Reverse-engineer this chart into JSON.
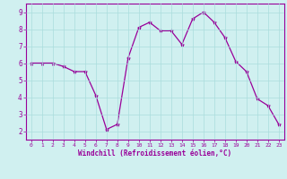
{
  "x": [
    0,
    1,
    2,
    3,
    4,
    5,
    6,
    7,
    8,
    9,
    10,
    11,
    12,
    13,
    14,
    15,
    16,
    17,
    18,
    19,
    20,
    21,
    22,
    23
  ],
  "y": [
    6.0,
    6.0,
    6.0,
    5.8,
    5.5,
    5.5,
    4.1,
    2.1,
    2.4,
    6.3,
    8.1,
    8.4,
    7.9,
    7.9,
    7.1,
    8.6,
    9.0,
    8.4,
    7.5,
    6.1,
    5.5,
    3.9,
    3.5,
    2.4
  ],
  "line_color": "#990099",
  "marker": "*",
  "marker_size": 3,
  "bg_color": "#d0f0f0",
  "grid_color": "#aadddd",
  "axis_label_color": "#990099",
  "tick_color": "#990099",
  "xlabel": "Windchill (Refroidissement éolien,°C)",
  "xlim": [
    -0.5,
    23.5
  ],
  "ylim": [
    1.5,
    9.5
  ],
  "yticks": [
    2,
    3,
    4,
    5,
    6,
    7,
    8,
    9
  ],
  "xticks": [
    0,
    1,
    2,
    3,
    4,
    5,
    6,
    7,
    8,
    9,
    10,
    11,
    12,
    13,
    14,
    15,
    16,
    17,
    18,
    19,
    20,
    21,
    22,
    23
  ],
  "spine_color": "#990099",
  "font_family": "monospace"
}
